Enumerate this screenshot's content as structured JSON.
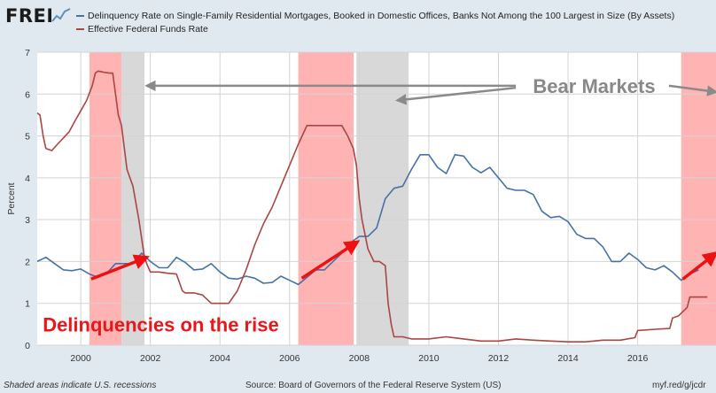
{
  "branding": {
    "logo": "FRED"
  },
  "legend": [
    {
      "label": "Delinquency Rate on Single-Family Residential Mortgages, Booked in Domestic Offices, Banks Not Among the 100 Largest in Size (By Assets)",
      "color": "#4572a7"
    },
    {
      "label": "Effective Federal Funds Rate",
      "color": "#aa4643"
    }
  ],
  "footer": {
    "note": "Shaded areas indicate U.S. recessions",
    "source": "Source: Board of Governors of the Federal Reserve System (US)",
    "url": "myf.red/g/jcdr"
  },
  "chart_data": {
    "type": "line",
    "ylabel": "Percent",
    "xlim": [
      1998.75,
      2018.25
    ],
    "ylim": [
      0,
      7
    ],
    "yticks": [
      0,
      1,
      2,
      3,
      4,
      5,
      6,
      7
    ],
    "xticks": [
      2000,
      2002,
      2004,
      2006,
      2008,
      2010,
      2012,
      2014,
      2016
    ],
    "grid": true,
    "colors": {
      "delinquency": "#4572a7",
      "fedfunds": "#aa4643",
      "recession": "#d8d8d8",
      "bear": "#ff9a9a",
      "arrow_red": "#ee1111",
      "arrow_gray": "#8a8a8a",
      "annotation_red": "#e8171c",
      "annotation_gray": "#888888"
    },
    "recessions": [
      [
        2001.17,
        2001.83
      ],
      [
        2007.92,
        2009.42
      ]
    ],
    "bear_markets": [
      [
        2000.25,
        2001.17
      ],
      [
        2006.25,
        2007.84
      ],
      [
        2017.25,
        2018.25
      ]
    ],
    "annotations": [
      {
        "text": "Bear Markets",
        "x": 2014.75,
        "y": 6.2,
        "color_key": "annotation_gray",
        "size": "large"
      },
      {
        "text": "Delinquencies on the rise",
        "x": 2002.3,
        "y": 0.5,
        "color_key": "annotation_red",
        "size": "large"
      }
    ],
    "gray_arrows": [
      {
        "from": [
          2012.5,
          6.2
        ],
        "to": [
          2001.9,
          6.2
        ]
      },
      {
        "from": [
          2012.5,
          6.15
        ],
        "to": [
          2009.1,
          5.85
        ]
      },
      {
        "from": [
          2016.9,
          6.2
        ],
        "to": [
          2018.25,
          6.05
        ]
      }
    ],
    "red_arrows": [
      {
        "from": [
          2000.3,
          1.58
        ],
        "to": [
          2001.9,
          2.1
        ]
      },
      {
        "from": [
          2006.35,
          1.6
        ],
        "to": [
          2007.95,
          2.47
        ]
      },
      {
        "from": [
          2017.3,
          1.58
        ],
        "to": [
          2018.25,
          2.2
        ]
      }
    ],
    "series": [
      {
        "name": "delinquency",
        "x": [
          1998.75,
          1999.0,
          1999.25,
          1999.5,
          1999.75,
          2000.0,
          2000.25,
          2000.5,
          2000.75,
          2001.0,
          2001.25,
          2001.5,
          2001.75,
          2002.0,
          2002.25,
          2002.5,
          2002.75,
          2003.0,
          2003.25,
          2003.5,
          2003.75,
          2004.0,
          2004.25,
          2004.5,
          2004.75,
          2005.0,
          2005.25,
          2005.5,
          2005.75,
          2006.0,
          2006.25,
          2006.5,
          2006.75,
          2007.0,
          2007.25,
          2007.5,
          2007.75,
          2008.0,
          2008.25,
          2008.5,
          2008.75,
          2009.0,
          2009.25,
          2009.5,
          2009.75,
          2010.0,
          2010.25,
          2010.5,
          2010.75,
          2011.0,
          2011.25,
          2011.5,
          2011.75,
          2012.0,
          2012.25,
          2012.5,
          2012.75,
          2013.0,
          2013.25,
          2013.5,
          2013.75,
          2014.0,
          2014.25,
          2014.5,
          2014.75,
          2015.0,
          2015.25,
          2015.5,
          2015.75,
          2016.0,
          2016.25,
          2016.5,
          2016.75,
          2017.0,
          2017.25,
          2017.5,
          2017.75
        ],
        "values": [
          2.0,
          2.1,
          1.95,
          1.8,
          1.78,
          1.82,
          1.7,
          1.62,
          1.72,
          1.95,
          1.95,
          1.95,
          2.2,
          2.0,
          1.85,
          1.85,
          2.1,
          1.98,
          1.8,
          1.82,
          1.95,
          1.75,
          1.6,
          1.58,
          1.65,
          1.6,
          1.48,
          1.5,
          1.65,
          1.55,
          1.45,
          1.62,
          1.8,
          1.8,
          2.0,
          2.2,
          2.45,
          2.6,
          2.6,
          2.8,
          3.5,
          3.75,
          3.8,
          4.2,
          4.55,
          4.55,
          4.25,
          4.1,
          4.55,
          4.52,
          4.25,
          4.12,
          4.25,
          4.0,
          3.75,
          3.7,
          3.7,
          3.6,
          3.2,
          3.05,
          3.08,
          2.95,
          2.65,
          2.55,
          2.55,
          2.35,
          2.0,
          2.0,
          2.2,
          2.05,
          1.85,
          1.8,
          1.9,
          1.75,
          1.55,
          1.7,
          1.8
        ]
      },
      {
        "name": "fedfunds",
        "x": [
          1998.75,
          1998.83,
          1998.92,
          1999.0,
          1999.17,
          1999.33,
          1999.5,
          1999.67,
          1999.83,
          2000.0,
          2000.17,
          2000.33,
          2000.42,
          2000.5,
          2000.67,
          2000.83,
          2000.92,
          2001.0,
          2001.08,
          2001.17,
          2001.33,
          2001.5,
          2001.67,
          2001.83,
          2001.92,
          2002.0,
          2002.25,
          2002.5,
          2002.75,
          2002.92,
          2003.0,
          2003.25,
          2003.5,
          2003.75,
          2004.0,
          2004.25,
          2004.5,
          2004.75,
          2005.0,
          2005.25,
          2005.5,
          2005.75,
          2006.0,
          2006.25,
          2006.5,
          2006.75,
          2007.0,
          2007.25,
          2007.5,
          2007.67,
          2007.83,
          2007.92,
          2008.0,
          2008.08,
          2008.25,
          2008.42,
          2008.58,
          2008.75,
          2008.83,
          2008.92,
          2009.0,
          2009.25,
          2009.5,
          2010.0,
          2010.5,
          2011.0,
          2011.5,
          2012.0,
          2012.5,
          2013.0,
          2013.5,
          2014.0,
          2014.5,
          2015.0,
          2015.5,
          2015.92,
          2016.0,
          2016.5,
          2016.92,
          2017.0,
          2017.17,
          2017.42,
          2017.5,
          2017.75,
          2017.92,
          2018.0
        ],
        "values": [
          5.55,
          5.5,
          5.0,
          4.7,
          4.65,
          4.8,
          4.95,
          5.1,
          5.35,
          5.6,
          5.85,
          6.2,
          6.5,
          6.55,
          6.52,
          6.5,
          6.5,
          6.0,
          5.5,
          5.25,
          4.2,
          3.8,
          3.0,
          2.1,
          1.9,
          1.75,
          1.75,
          1.72,
          1.7,
          1.3,
          1.25,
          1.25,
          1.2,
          1.0,
          1.0,
          1.0,
          1.3,
          1.8,
          2.4,
          2.9,
          3.3,
          3.8,
          4.3,
          4.8,
          5.25,
          5.25,
          5.25,
          5.25,
          5.25,
          5.0,
          4.7,
          4.3,
          3.5,
          3.0,
          2.3,
          2.0,
          2.0,
          1.9,
          1.0,
          0.5,
          0.2,
          0.2,
          0.15,
          0.15,
          0.2,
          0.15,
          0.1,
          0.1,
          0.15,
          0.12,
          0.1,
          0.08,
          0.08,
          0.12,
          0.12,
          0.18,
          0.35,
          0.38,
          0.4,
          0.65,
          0.7,
          0.9,
          1.15,
          1.15,
          1.15,
          1.15
        ]
      }
    ]
  }
}
